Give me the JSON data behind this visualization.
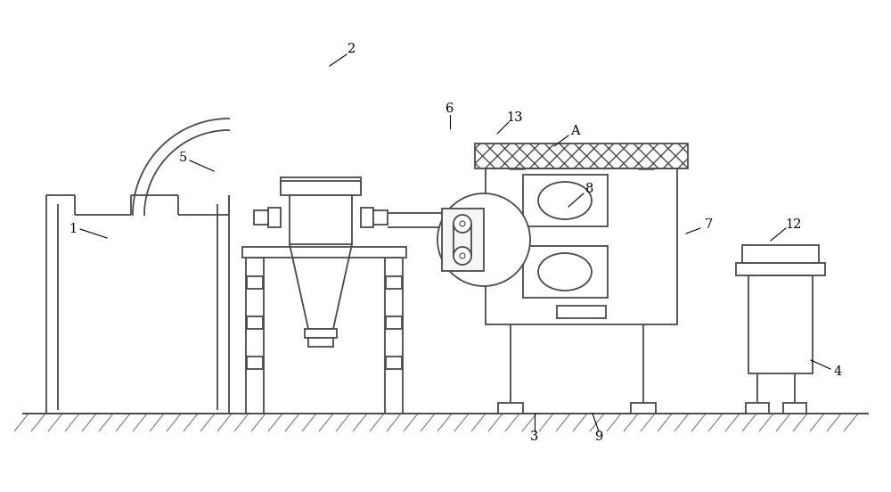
{
  "bg_color": "#ffffff",
  "line_color": "#4a4a4a",
  "lw": 1.3,
  "figsize": [
    10.0,
    5.52
  ],
  "dpi": 100
}
